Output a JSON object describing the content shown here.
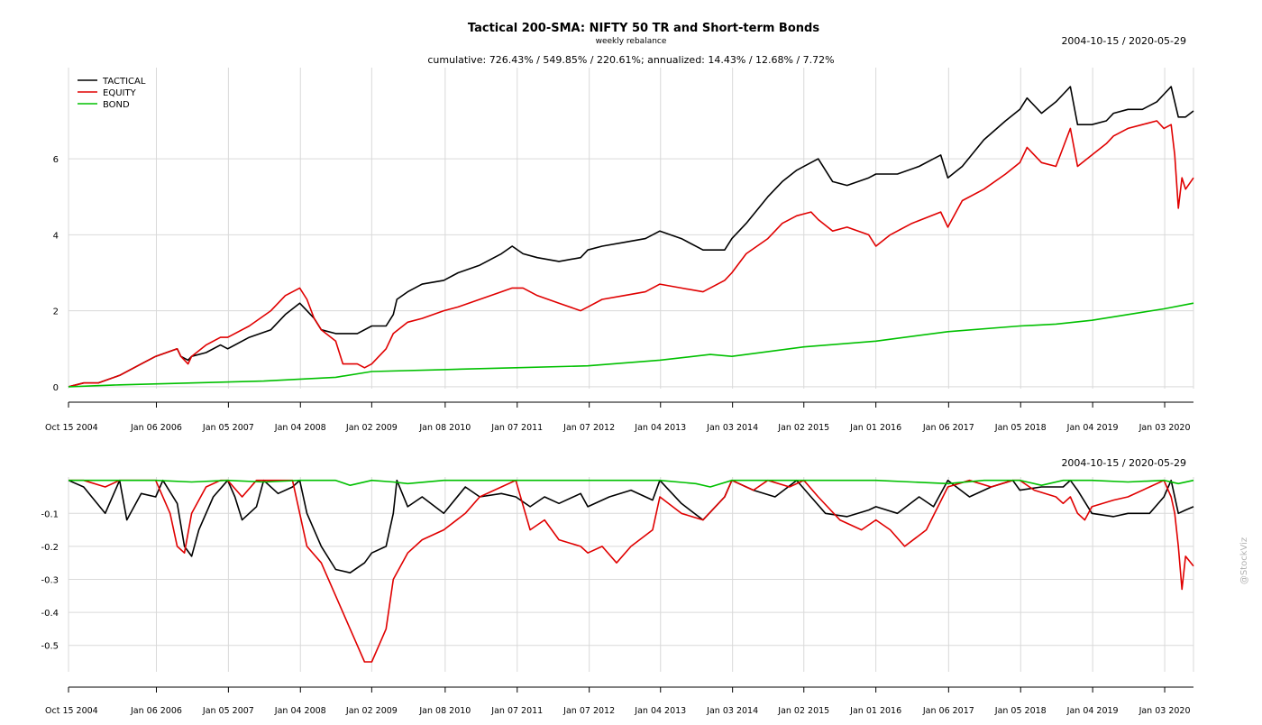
{
  "chart_data": [
    {
      "type": "line",
      "title": "Tactical 200-SMA: NIFTY 50 TR and Short-term Bonds",
      "subtitle": "weekly rebalance",
      "stats_line": "cumulative: 726.43% / 549.85% / 220.61%; annualized: 14.43% / 12.68% / 7.72%",
      "date_range": "2004-10-15 / 2020-05-29",
      "x_tick_labels": [
        "Oct 15 2004",
        "Jan 06 2006",
        "Jan 05 2007",
        "Jan 04 2008",
        "Jan 02 2009",
        "Jan 08 2010",
        "Jan 07 2011",
        "Jan 07 2012",
        "Jan 04 2013",
        "Jan 03 2014",
        "Jan 02 2015",
        "Jan 01 2016",
        "Jan 06 2017",
        "Jan 05 2018",
        "Jan 04 2019",
        "Jan 03 2020"
      ],
      "x_tick_years": [
        2004.79,
        2006.01,
        2007.01,
        2008.01,
        2009.0,
        2010.02,
        2011.02,
        2012.02,
        2013.01,
        2014.01,
        2015.0,
        2016.0,
        2017.01,
        2018.01,
        2019.01,
        2020.01
      ],
      "xlim": [
        2004.79,
        2020.41
      ],
      "ylim": [
        -0.05,
        8.4
      ],
      "y_ticks": [
        0,
        2,
        4,
        6
      ],
      "y_tick_labels": [
        "0",
        "2",
        "4",
        "6"
      ],
      "legend_position": "top-left",
      "series": [
        {
          "name": "TACTICAL",
          "color": "#000000",
          "x": [
            2004.79,
            2005.0,
            2005.2,
            2005.5,
            2005.8,
            2006.0,
            2006.3,
            2006.35,
            2006.45,
            2006.5,
            2006.7,
            2006.9,
            2007.0,
            2007.3,
            2007.6,
            2007.8,
            2008.0,
            2008.1,
            2008.2,
            2008.3,
            2008.5,
            2008.8,
            2009.0,
            2009.2,
            2009.3,
            2009.35,
            2009.5,
            2009.7,
            2010.0,
            2010.2,
            2010.5,
            2010.8,
            2010.95,
            2011.1,
            2011.3,
            2011.6,
            2011.9,
            2012.0,
            2012.2,
            2012.5,
            2012.8,
            2013.0,
            2013.3,
            2013.6,
            2013.9,
            2014.0,
            2014.2,
            2014.5,
            2014.7,
            2014.9,
            2015.1,
            2015.2,
            2015.4,
            2015.6,
            2015.9,
            2016.0,
            2016.3,
            2016.6,
            2016.8,
            2016.9,
            2017.0,
            2017.2,
            2017.5,
            2017.8,
            2018.0,
            2018.1,
            2018.3,
            2018.5,
            2018.6,
            2018.7,
            2018.8,
            2019.0,
            2019.2,
            2019.3,
            2019.5,
            2019.7,
            2019.9,
            2020.0,
            2020.1,
            2020.2,
            2020.3,
            2020.41
          ],
          "values": [
            0.0,
            0.1,
            0.1,
            0.3,
            0.6,
            0.8,
            1.0,
            0.8,
            0.7,
            0.8,
            0.9,
            1.1,
            1.0,
            1.3,
            1.5,
            1.9,
            2.2,
            2.0,
            1.8,
            1.5,
            1.4,
            1.4,
            1.6,
            1.6,
            1.9,
            2.3,
            2.5,
            2.7,
            2.8,
            3.0,
            3.2,
            3.5,
            3.7,
            3.5,
            3.4,
            3.3,
            3.4,
            3.6,
            3.7,
            3.8,
            3.9,
            4.1,
            3.9,
            3.6,
            3.6,
            3.9,
            4.3,
            5.0,
            5.4,
            5.7,
            5.9,
            6.0,
            5.4,
            5.3,
            5.5,
            5.6,
            5.6,
            5.8,
            6.0,
            6.1,
            5.5,
            5.8,
            6.5,
            7.0,
            7.3,
            7.6,
            7.2,
            7.5,
            7.7,
            7.9,
            6.9,
            6.9,
            7.0,
            7.2,
            7.3,
            7.3,
            7.5,
            7.7,
            7.9,
            7.1,
            7.1,
            7.26
          ]
        },
        {
          "name": "EQUITY",
          "color": "#e00000",
          "x": [
            2004.79,
            2005.0,
            2005.2,
            2005.5,
            2005.8,
            2006.0,
            2006.3,
            2006.35,
            2006.45,
            2006.5,
            2006.7,
            2006.9,
            2007.0,
            2007.3,
            2007.6,
            2007.8,
            2008.0,
            2008.1,
            2008.2,
            2008.3,
            2008.5,
            2008.6,
            2008.8,
            2008.9,
            2009.0,
            2009.2,
            2009.3,
            2009.5,
            2009.7,
            2010.0,
            2010.2,
            2010.5,
            2010.8,
            2010.95,
            2011.1,
            2011.3,
            2011.6,
            2011.9,
            2012.0,
            2012.2,
            2012.5,
            2012.8,
            2013.0,
            2013.3,
            2013.6,
            2013.9,
            2014.0,
            2014.2,
            2014.5,
            2014.7,
            2014.9,
            2015.1,
            2015.2,
            2015.4,
            2015.6,
            2015.9,
            2016.0,
            2016.2,
            2016.5,
            2016.9,
            2017.0,
            2017.2,
            2017.5,
            2017.8,
            2018.0,
            2018.1,
            2018.3,
            2018.5,
            2018.6,
            2018.7,
            2018.8,
            2019.0,
            2019.2,
            2019.3,
            2019.5,
            2019.7,
            2019.9,
            2020.0,
            2020.1,
            2020.15,
            2020.2,
            2020.25,
            2020.3,
            2020.41
          ],
          "values": [
            0.0,
            0.1,
            0.1,
            0.3,
            0.6,
            0.8,
            1.0,
            0.8,
            0.6,
            0.8,
            1.1,
            1.3,
            1.3,
            1.6,
            2.0,
            2.4,
            2.6,
            2.3,
            1.8,
            1.5,
            1.2,
            0.6,
            0.6,
            0.5,
            0.6,
            1.0,
            1.4,
            1.7,
            1.8,
            2.0,
            2.1,
            2.3,
            2.5,
            2.6,
            2.6,
            2.4,
            2.2,
            2.0,
            2.1,
            2.3,
            2.4,
            2.5,
            2.7,
            2.6,
            2.5,
            2.8,
            3.0,
            3.5,
            3.9,
            4.3,
            4.5,
            4.6,
            4.4,
            4.1,
            4.2,
            4.0,
            3.7,
            4.0,
            4.3,
            4.6,
            4.2,
            4.9,
            5.2,
            5.6,
            5.9,
            6.3,
            5.9,
            5.8,
            6.3,
            6.8,
            5.8,
            6.1,
            6.4,
            6.6,
            6.8,
            6.9,
            7.0,
            6.8,
            6.9,
            6.1,
            4.7,
            5.5,
            5.2,
            5.5
          ]
        },
        {
          "name": "BOND",
          "color": "#00c000",
          "x": [
            2004.79,
            2005.5,
            2006.5,
            2007.5,
            2008.5,
            2009.0,
            2010.0,
            2011.0,
            2012.0,
            2013.0,
            2013.7,
            2014.0,
            2015.0,
            2016.0,
            2017.0,
            2018.0,
            2018.5,
            2019.0,
            2019.5,
            2020.0,
            2020.41
          ],
          "values": [
            0.0,
            0.05,
            0.1,
            0.15,
            0.25,
            0.4,
            0.45,
            0.5,
            0.55,
            0.7,
            0.85,
            0.8,
            1.05,
            1.2,
            1.45,
            1.6,
            1.65,
            1.75,
            1.9,
            2.05,
            2.2
          ]
        }
      ]
    },
    {
      "type": "line",
      "date_range": "2004-10-15 / 2020-05-29",
      "x_tick_labels": [
        "Oct 15 2004",
        "Jan 06 2006",
        "Jan 05 2007",
        "Jan 04 2008",
        "Jan 02 2009",
        "Jan 08 2010",
        "Jan 07 2011",
        "Jan 07 2012",
        "Jan 04 2013",
        "Jan 03 2014",
        "Jan 02 2015",
        "Jan 01 2016",
        "Jan 06 2017",
        "Jan 05 2018",
        "Jan 04 2019",
        "Jan 03 2020"
      ],
      "x_tick_years": [
        2004.79,
        2006.01,
        2007.01,
        2008.01,
        2009.0,
        2010.02,
        2011.02,
        2012.02,
        2013.01,
        2014.01,
        2015.0,
        2016.0,
        2017.01,
        2018.01,
        2019.01,
        2020.01
      ],
      "xlim": [
        2004.79,
        2020.41
      ],
      "ylim": [
        -0.58,
        0.01
      ],
      "y_ticks": [
        -0.1,
        -0.2,
        -0.3,
        -0.4,
        -0.5
      ],
      "y_tick_labels": [
        "-0.1",
        "-0.2",
        "-0.3",
        "-0.4",
        "-0.5"
      ],
      "series": [
        {
          "name": "TACTICAL",
          "color": "#000000",
          "x": [
            2004.79,
            2005.0,
            2005.3,
            2005.5,
            2005.6,
            2005.8,
            2006.0,
            2006.1,
            2006.3,
            2006.4,
            2006.5,
            2006.6,
            2006.8,
            2007.0,
            2007.1,
            2007.2,
            2007.4,
            2007.5,
            2007.7,
            2007.9,
            2008.0,
            2008.1,
            2008.3,
            2008.5,
            2008.7,
            2008.9,
            2009.0,
            2009.2,
            2009.3,
            2009.35,
            2009.5,
            2009.7,
            2010.0,
            2010.3,
            2010.5,
            2010.8,
            2011.0,
            2011.2,
            2011.4,
            2011.6,
            2011.9,
            2012.0,
            2012.3,
            2012.6,
            2012.9,
            2013.0,
            2013.3,
            2013.6,
            2013.9,
            2014.0,
            2014.3,
            2014.6,
            2014.9,
            2015.1,
            2015.3,
            2015.6,
            2015.9,
            2016.0,
            2016.3,
            2016.6,
            2016.8,
            2017.0,
            2017.3,
            2017.6,
            2017.9,
            2018.0,
            2018.3,
            2018.6,
            2018.7,
            2018.8,
            2019.0,
            2019.3,
            2019.5,
            2019.8,
            2020.0,
            2020.1,
            2020.2,
            2020.3,
            2020.41
          ],
          "values": [
            0,
            -0.02,
            -0.1,
            0,
            -0.12,
            -0.04,
            -0.05,
            0,
            -0.07,
            -0.2,
            -0.23,
            -0.15,
            -0.05,
            0,
            -0.05,
            -0.12,
            -0.08,
            0,
            -0.04,
            -0.02,
            0,
            -0.1,
            -0.2,
            -0.27,
            -0.28,
            -0.25,
            -0.22,
            -0.2,
            -0.1,
            0,
            -0.08,
            -0.05,
            -0.1,
            -0.02,
            -0.05,
            -0.04,
            -0.05,
            -0.08,
            -0.05,
            -0.07,
            -0.04,
            -0.08,
            -0.05,
            -0.03,
            -0.06,
            0,
            -0.07,
            -0.12,
            -0.05,
            0,
            -0.03,
            -0.05,
            0,
            -0.05,
            -0.1,
            -0.11,
            -0.09,
            -0.08,
            -0.1,
            -0.05,
            -0.08,
            0,
            -0.05,
            -0.02,
            0,
            -0.03,
            -0.02,
            -0.02,
            0,
            -0.03,
            -0.1,
            -0.11,
            -0.1,
            -0.1,
            -0.05,
            0,
            -0.1,
            -0.09,
            -0.08
          ]
        },
        {
          "name": "EQUITY",
          "color": "#e00000",
          "x": [
            2004.79,
            2005.0,
            2005.3,
            2005.5,
            2005.8,
            2006.0,
            2006.2,
            2006.3,
            2006.4,
            2006.5,
            2006.7,
            2006.9,
            2007.0,
            2007.2,
            2007.4,
            2007.6,
            2007.9,
            2008.0,
            2008.1,
            2008.3,
            2008.5,
            2008.7,
            2008.8,
            2008.9,
            2009.0,
            2009.1,
            2009.2,
            2009.3,
            2009.5,
            2009.7,
            2010.0,
            2010.3,
            2010.5,
            2010.8,
            2011.0,
            2011.2,
            2011.4,
            2011.6,
            2011.9,
            2012.0,
            2012.2,
            2012.4,
            2012.6,
            2012.9,
            2013.0,
            2013.3,
            2013.6,
            2013.9,
            2014.0,
            2014.3,
            2014.5,
            2014.8,
            2015.0,
            2015.2,
            2015.5,
            2015.8,
            2016.0,
            2016.2,
            2016.4,
            2016.7,
            2017.0,
            2017.3,
            2017.6,
            2017.9,
            2018.0,
            2018.2,
            2018.5,
            2018.6,
            2018.7,
            2018.8,
            2018.9,
            2019.0,
            2019.3,
            2019.5,
            2019.8,
            2020.0,
            2020.1,
            2020.15,
            2020.2,
            2020.25,
            2020.3,
            2020.41
          ],
          "values": [
            0,
            0,
            -0.02,
            0,
            0,
            0,
            -0.1,
            -0.2,
            -0.22,
            -0.1,
            -0.02,
            0,
            0,
            -0.05,
            0,
            0,
            0,
            -0.1,
            -0.2,
            -0.25,
            -0.35,
            -0.45,
            -0.5,
            -0.55,
            -0.55,
            -0.5,
            -0.45,
            -0.3,
            -0.22,
            -0.18,
            -0.15,
            -0.1,
            -0.05,
            -0.02,
            0,
            -0.15,
            -0.12,
            -0.18,
            -0.2,
            -0.22,
            -0.2,
            -0.25,
            -0.2,
            -0.15,
            -0.05,
            -0.1,
            -0.12,
            -0.05,
            0,
            -0.03,
            0,
            -0.02,
            0,
            -0.05,
            -0.12,
            -0.15,
            -0.12,
            -0.15,
            -0.2,
            -0.15,
            -0.02,
            0,
            -0.02,
            0,
            0,
            -0.03,
            -0.05,
            -0.07,
            -0.05,
            -0.1,
            -0.12,
            -0.08,
            -0.06,
            -0.05,
            -0.02,
            0,
            -0.05,
            -0.1,
            -0.2,
            -0.33,
            -0.23,
            -0.26
          ]
        },
        {
          "name": "BOND",
          "color": "#00c000",
          "x": [
            2004.79,
            2006.0,
            2006.5,
            2007.0,
            2007.5,
            2008.0,
            2008.5,
            2008.7,
            2009.0,
            2009.3,
            2009.5,
            2010.0,
            2011.0,
            2012.0,
            2013.0,
            2013.5,
            2013.7,
            2014.0,
            2015.0,
            2016.0,
            2016.5,
            2017.0,
            2017.5,
            2018.0,
            2018.3,
            2018.6,
            2019.0,
            2019.5,
            2020.0,
            2020.2,
            2020.41
          ],
          "values": [
            0,
            0,
            -0.005,
            0,
            -0.005,
            0,
            0,
            -0.015,
            0,
            -0.005,
            -0.01,
            0,
            0,
            0,
            0,
            -0.01,
            -0.02,
            0,
            0,
            0,
            -0.005,
            -0.01,
            0,
            0,
            -0.015,
            0,
            0,
            -0.005,
            0,
            -0.01,
            0
          ]
        }
      ]
    }
  ],
  "watermark": "@StockViz"
}
